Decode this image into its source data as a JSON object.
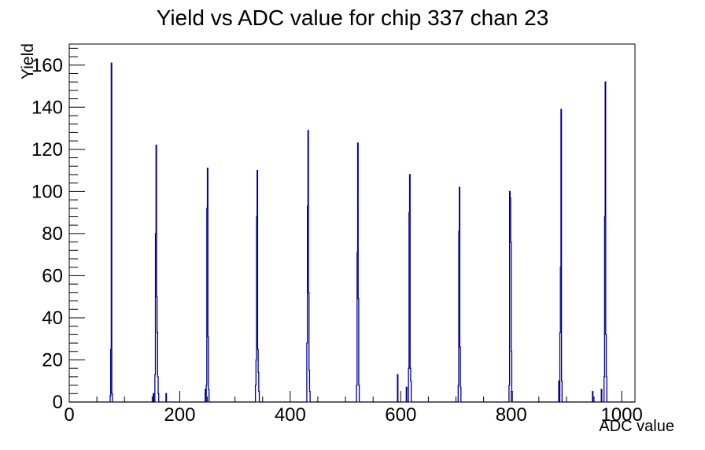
{
  "chart_data": {
    "type": "bar",
    "title": "Yield vs ADC value for chip 337 chan 23",
    "xlabel": "ADC value",
    "ylabel": "Yield",
    "xlim": [
      0,
      1024
    ],
    "ylim": [
      0,
      170
    ],
    "x_ticks": [
      0,
      200,
      400,
      600,
      800,
      1000
    ],
    "x_minor_step": 50,
    "y_ticks": [
      0,
      20,
      40,
      60,
      80,
      100,
      120,
      140,
      160
    ],
    "y_minor_step": 4,
    "line_color": "#000099",
    "frame_color": "#000000",
    "bin_width": 1,
    "grid": "off",
    "legend": "none",
    "peak_positions": [
      76,
      157,
      250,
      340,
      432,
      522,
      616,
      706,
      798,
      890,
      970
    ],
    "peak_heights": [
      161,
      122,
      111,
      110,
      129,
      123,
      108,
      102,
      100,
      139,
      152
    ],
    "bins": [
      [
        74,
        3
      ],
      [
        75,
        25
      ],
      [
        76,
        161
      ],
      [
        77,
        4
      ],
      [
        152,
        4
      ],
      [
        155,
        13
      ],
      [
        156,
        80
      ],
      [
        157,
        122
      ],
      [
        158,
        50
      ],
      [
        159,
        33
      ],
      [
        160,
        12
      ],
      [
        161,
        4
      ],
      [
        175,
        4
      ],
      [
        246,
        6
      ],
      [
        248,
        8
      ],
      [
        249,
        92
      ],
      [
        250,
        111
      ],
      [
        251,
        31
      ],
      [
        252,
        6
      ],
      [
        337,
        8
      ],
      [
        338,
        20
      ],
      [
        339,
        88
      ],
      [
        340,
        110
      ],
      [
        341,
        25
      ],
      [
        342,
        14
      ],
      [
        343,
        5
      ],
      [
        430,
        28
      ],
      [
        431,
        93
      ],
      [
        432,
        129
      ],
      [
        433,
        52
      ],
      [
        434,
        15
      ],
      [
        435,
        5
      ],
      [
        520,
        8
      ],
      [
        521,
        71
      ],
      [
        522,
        123
      ],
      [
        523,
        49
      ],
      [
        524,
        8
      ],
      [
        594,
        13
      ],
      [
        610,
        7
      ],
      [
        614,
        16
      ],
      [
        615,
        90
      ],
      [
        616,
        108
      ],
      [
        617,
        16
      ],
      [
        618,
        10
      ],
      [
        704,
        8
      ],
      [
        705,
        81
      ],
      [
        706,
        102
      ],
      [
        707,
        26
      ],
      [
        708,
        7
      ],
      [
        796,
        8
      ],
      [
        797,
        100
      ],
      [
        798,
        97
      ],
      [
        799,
        76
      ],
      [
        800,
        24
      ],
      [
        801,
        5
      ],
      [
        886,
        10
      ],
      [
        888,
        33
      ],
      [
        889,
        64
      ],
      [
        890,
        139
      ],
      [
        891,
        10
      ],
      [
        947,
        5
      ],
      [
        963,
        6
      ],
      [
        968,
        12
      ],
      [
        969,
        88
      ],
      [
        970,
        152
      ],
      [
        971,
        32
      ],
      [
        972,
        12
      ]
    ]
  }
}
